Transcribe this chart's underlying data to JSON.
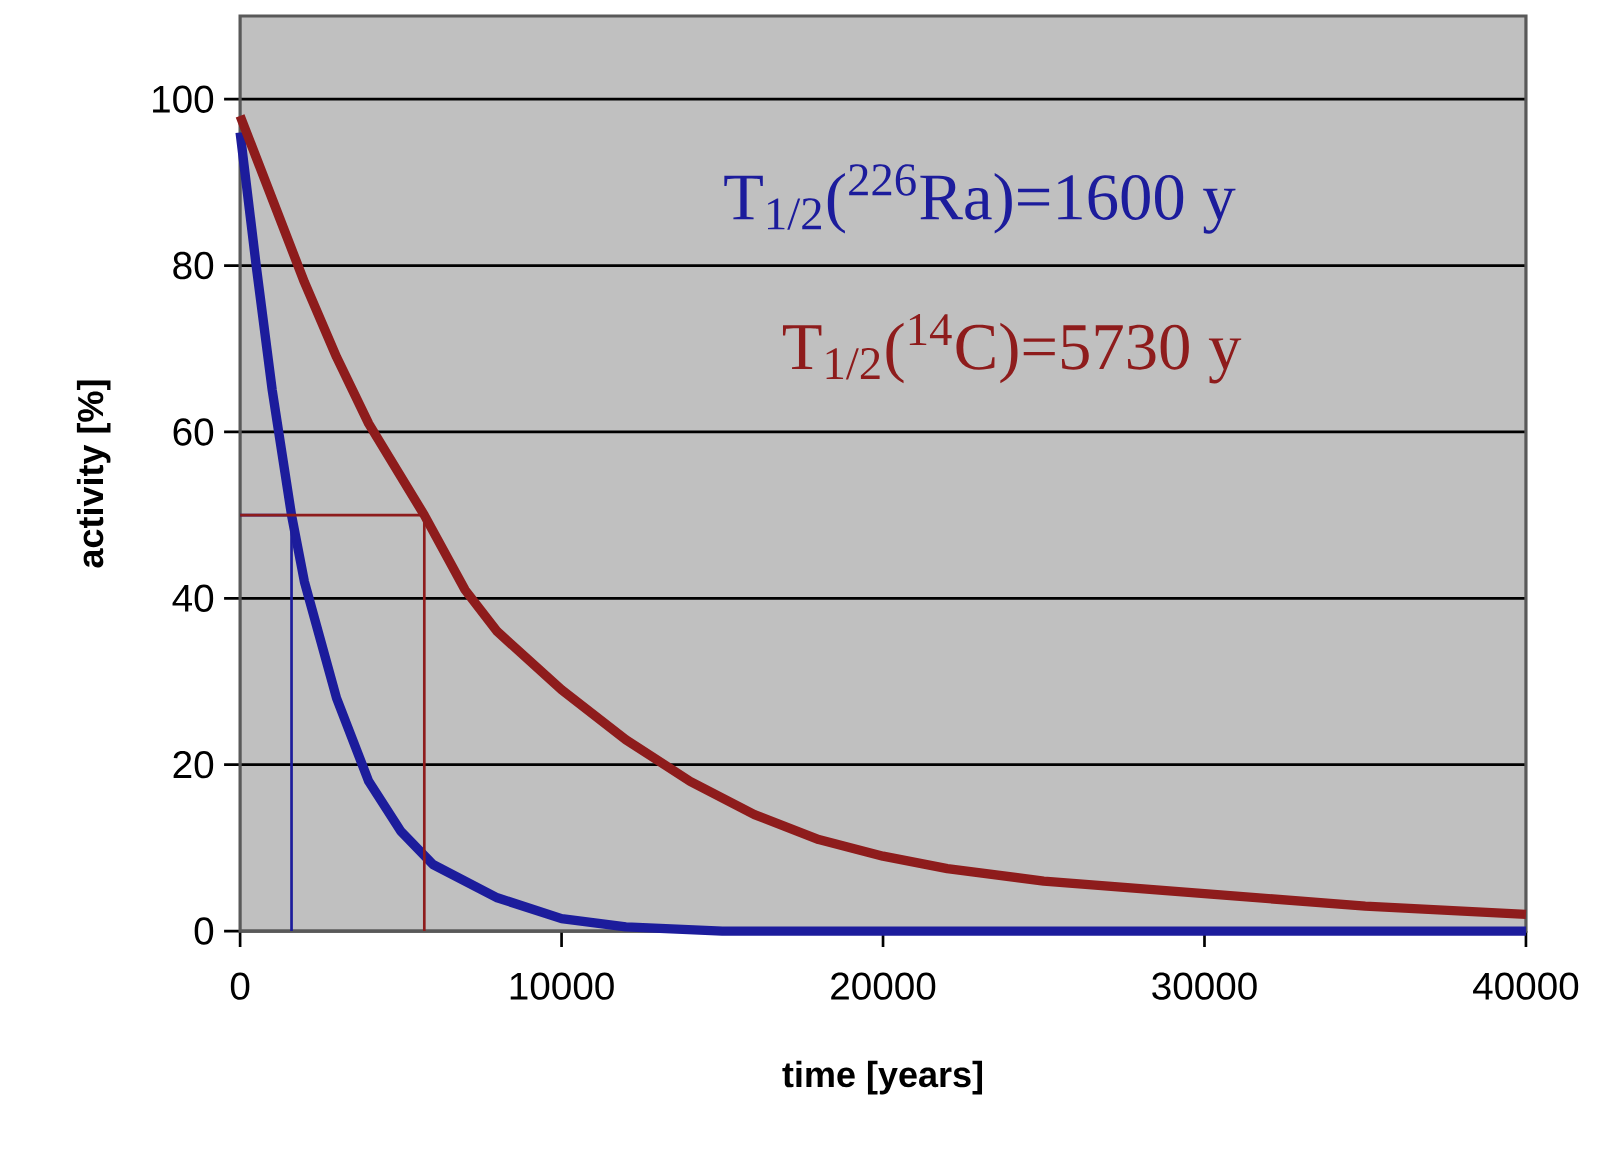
{
  "chart_data": {
    "type": "line",
    "xlabel": "time  [years]",
    "ylabel": "activity  [%]",
    "xlim": [
      0,
      40000
    ],
    "ylim": [
      0,
      110
    ],
    "xticks": [
      0,
      10000,
      20000,
      30000,
      40000
    ],
    "yticks": [
      0,
      20,
      40,
      60,
      80,
      100
    ],
    "grid": "y",
    "marker": "none",
    "line_style": "solid",
    "series": [
      {
        "color": "#1c1c9c",
        "x": [
          0,
          500,
          1000,
          1600,
          2000,
          3000,
          4000,
          5000,
          6000,
          8000,
          10000,
          12000,
          15000,
          20000,
          30000,
          40000
        ],
        "values": [
          96,
          80,
          65,
          50,
          42,
          28,
          18,
          12,
          8,
          4,
          1.5,
          0.5,
          0,
          0,
          0,
          0
        ]
      },
      {
        "color": "#8e1c1c",
        "x": [
          0,
          1000,
          2000,
          3000,
          4000,
          5730,
          7000,
          8000,
          10000,
          12000,
          14000,
          16000,
          18000,
          20000,
          22000,
          25000,
          30000,
          35000,
          40000
        ],
        "values": [
          98,
          88,
          78,
          69,
          61,
          50,
          41,
          36,
          29,
          23,
          18,
          14,
          11,
          9,
          7.5,
          6,
          4.5,
          3,
          2
        ]
      },
      {
        "color": "#1c1c9c",
        "x": [
          0,
          1600,
          1600
        ],
        "values": [
          50,
          50,
          0
        ]
      },
      {
        "color": "#8e1c1c",
        "x": [
          0,
          5730,
          5730
        ],
        "values": [
          50,
          50,
          0
        ]
      }
    ],
    "annotations": [
      "T$_{1/2}$($^{226}$Ra)=1600 y",
      "T$_{1/2}$($^{14}$C)=5730 y"
    ]
  }
}
